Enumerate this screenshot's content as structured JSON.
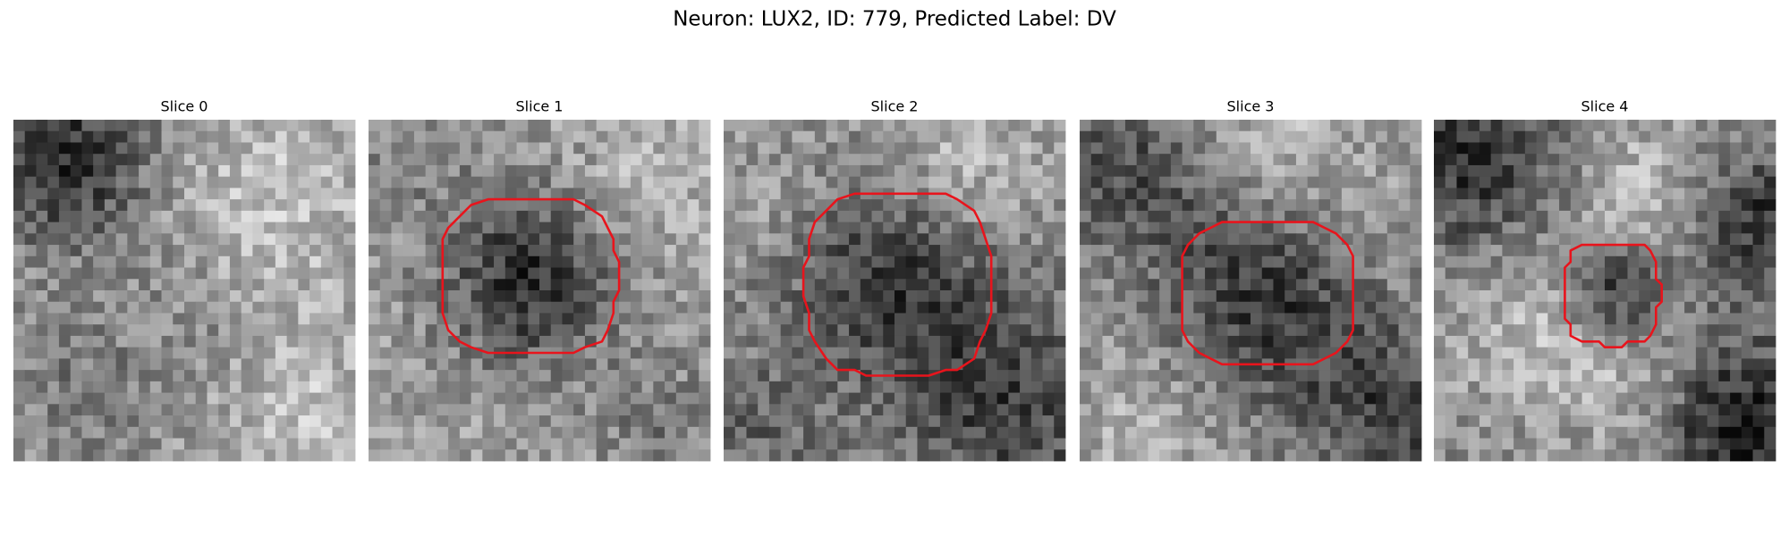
{
  "title": "Neuron: LUX2, ID: 779, Predicted Label: DV",
  "panels": [
    {
      "title": "Slice 0"
    },
    {
      "title": "Slice 1"
    },
    {
      "title": "Slice 2"
    },
    {
      "title": "Slice 3"
    },
    {
      "title": "Slice 4"
    }
  ]
}
